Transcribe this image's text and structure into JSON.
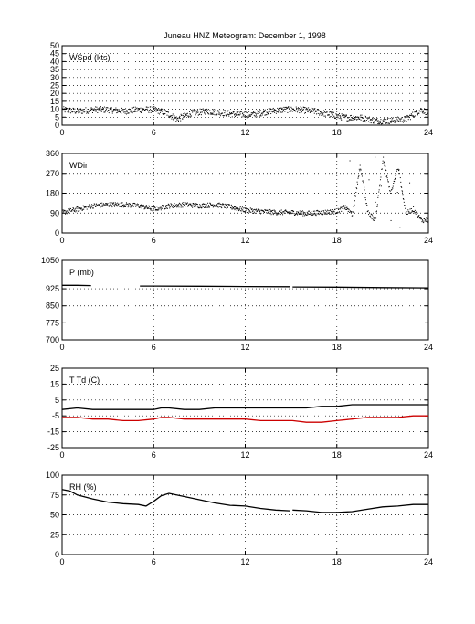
{
  "figure_title": "Juneau HNZ Meteogram:  December  1, 1998",
  "colors": {
    "axis": "#000000",
    "grid": "#000000",
    "dewpoint": "#cc0000",
    "series": "#000000",
    "background": "#ffffff"
  },
  "chart_data": [
    {
      "type": "scatter",
      "label": "WSpd (kts)",
      "xlim": [
        0,
        24
      ],
      "ylim": [
        0,
        50
      ],
      "xticks": [
        0,
        6,
        12,
        18,
        24
      ],
      "yticks": [
        0,
        5,
        10,
        15,
        20,
        25,
        30,
        35,
        40,
        45,
        50
      ],
      "grid": true,
      "series": [
        {
          "x": [
            0,
            1,
            2,
            3,
            4,
            5,
            6,
            6.8,
            7.5,
            8.5,
            9.5,
            10.5,
            11.5,
            12.5,
            13.5,
            14.5,
            15.5,
            16.5,
            17.5,
            18.5,
            19.5,
            20.5,
            21.5,
            22.5,
            23.5,
            24
          ],
          "y": [
            10,
            9,
            10,
            10,
            9,
            10,
            10,
            8,
            4,
            8,
            9,
            8,
            7,
            7,
            9,
            10,
            10,
            9,
            7,
            5,
            5,
            3,
            3,
            4,
            10,
            8
          ]
        }
      ]
    },
    {
      "type": "scatter",
      "label": "WDir",
      "xlim": [
        0,
        24
      ],
      "ylim": [
        0,
        360
      ],
      "xticks": [
        0,
        6,
        12,
        18,
        24
      ],
      "yticks": [
        0,
        90,
        180,
        270,
        360
      ],
      "grid": true,
      "series": [
        {
          "x": [
            0,
            1,
            2,
            3,
            4,
            5,
            6,
            7,
            8,
            9,
            10,
            11,
            12,
            13,
            14,
            15,
            16,
            17,
            18,
            18.5,
            19,
            19.5,
            20,
            20.5,
            21,
            21.5,
            22,
            22.5,
            23,
            23.5,
            24
          ],
          "y": [
            95,
            110,
            125,
            130,
            130,
            125,
            110,
            125,
            130,
            125,
            130,
            120,
            105,
            100,
            95,
            95,
            90,
            95,
            100,
            120,
            85,
            310,
            95,
            60,
            340,
            180,
            300,
            90,
            110,
            60,
            60
          ]
        }
      ]
    },
    {
      "type": "line",
      "label": "P (mb)",
      "xlim": [
        0,
        24
      ],
      "ylim": [
        700,
        1050
      ],
      "xticks": [
        0,
        6,
        12,
        18,
        24
      ],
      "yticks": [
        700,
        775,
        850,
        925,
        1050
      ],
      "grid": true,
      "series": [
        {
          "x": [
            0,
            1,
            1.9
          ],
          "y": [
            940,
            940,
            939
          ]
        },
        {
          "x": [
            5.1,
            6,
            9,
            12,
            14.9
          ],
          "y": [
            937,
            937,
            936,
            935,
            934
          ]
        },
        {
          "x": [
            15.1,
            18,
            21,
            24
          ],
          "y": [
            933,
            932,
            930,
            929
          ]
        }
      ]
    },
    {
      "type": "line",
      "label": "T Td (C)",
      "xlim": [
        0,
        24
      ],
      "ylim": [
        -25,
        25
      ],
      "xticks": [
        0,
        6,
        12,
        18,
        24
      ],
      "yticks": [
        -25,
        -15,
        -5,
        5,
        15,
        25
      ],
      "grid": true,
      "series": [
        {
          "color": "black",
          "x": [
            0,
            1,
            2,
            3,
            4,
            5,
            5.5,
            6,
            6.5,
            7,
            8,
            9,
            10,
            11,
            12,
            13,
            14,
            14.9,
            15.1,
            16,
            17,
            18,
            19,
            20,
            21,
            22,
            23,
            24
          ],
          "y": [
            -1,
            0,
            -1,
            -1,
            -1,
            -1,
            -1,
            -1,
            0,
            0,
            -1,
            -1,
            0,
            0,
            0,
            0,
            0,
            0,
            0,
            0,
            1,
            1,
            2,
            2,
            2,
            2,
            2,
            2
          ]
        },
        {
          "color": "red",
          "x": [
            0,
            1,
            2,
            3,
            4,
            5,
            6,
            6.5,
            7,
            8,
            9,
            10,
            11,
            12,
            13,
            14,
            14.9,
            15.1,
            16,
            17,
            18,
            19,
            20,
            21,
            22,
            23,
            24
          ],
          "y": [
            -6,
            -6,
            -7,
            -7,
            -8,
            -8,
            -7,
            -6,
            -6,
            -7,
            -7,
            -7,
            -7,
            -7,
            -8,
            -8,
            -8,
            -8,
            -9,
            -9,
            -8,
            -7,
            -6,
            -6,
            -6,
            -5,
            -5
          ]
        }
      ]
    },
    {
      "type": "line",
      "label": "RH (%)",
      "xlim": [
        0,
        24
      ],
      "ylim": [
        0,
        100
      ],
      "xticks": [
        0,
        6,
        12,
        18,
        24
      ],
      "yticks": [
        0,
        25,
        50,
        75,
        100
      ],
      "grid": true,
      "series": [
        {
          "x": [
            0,
            0.5,
            1,
            2,
            3,
            4,
            5,
            5.5,
            6,
            6.5,
            7,
            8,
            9,
            10,
            11,
            12,
            13,
            14,
            14.9
          ],
          "y": [
            82,
            80,
            75,
            70,
            66,
            64,
            63,
            61,
            67,
            74,
            77,
            73,
            69,
            65,
            62,
            61,
            58,
            56,
            55
          ]
        },
        {
          "x": [
            15.1,
            16,
            17,
            18,
            19,
            20,
            21,
            22,
            23,
            24
          ],
          "y": [
            56,
            55,
            53,
            53,
            54,
            57,
            60,
            61,
            63,
            63
          ]
        }
      ]
    }
  ]
}
